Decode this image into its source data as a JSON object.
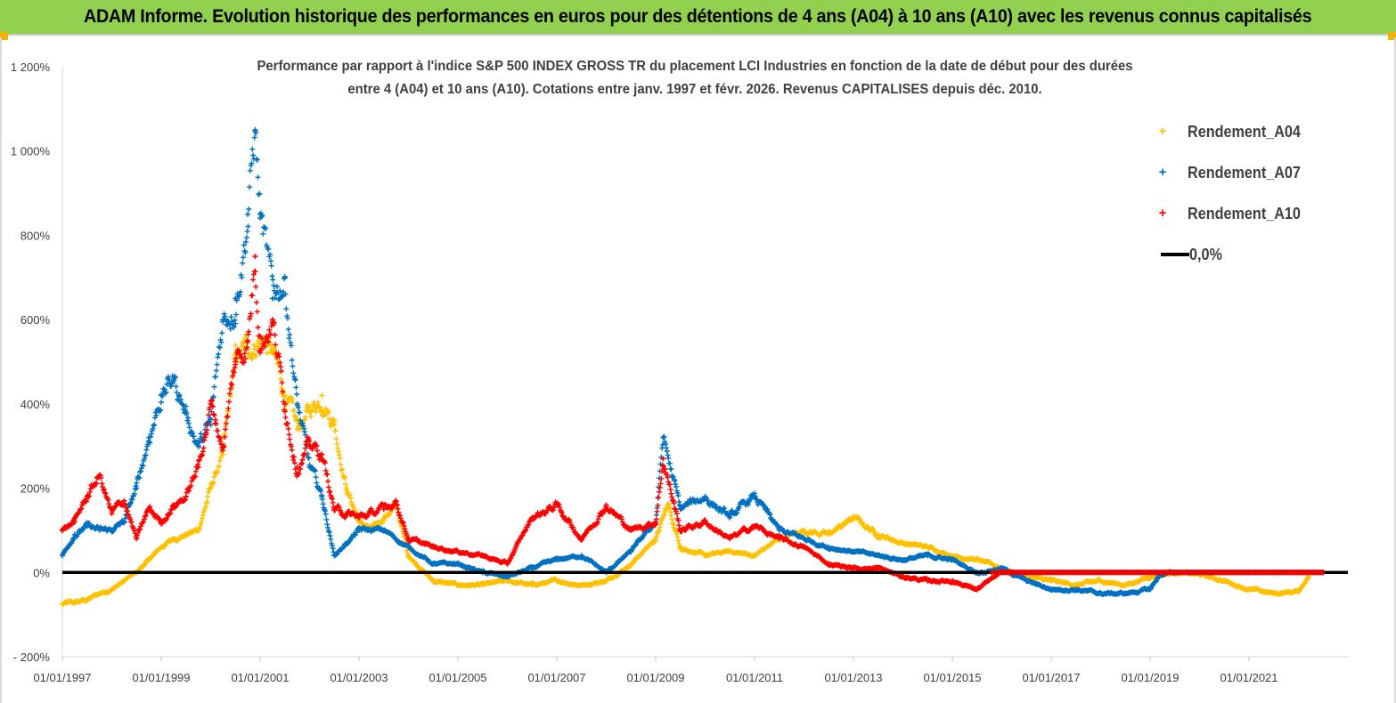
{
  "banner": {
    "title": "ADAM Informe. Evolution historique des performances en euros pour des détentions de 4 ans (A04) à 10 ans (A10) avec les revenus connus capitalisés",
    "color": "#92d050"
  },
  "chart_data": {
    "type": "scatter",
    "title_line1": "Performance par rapport à l'indice S&P 500 INDEX GROSS TR  du placement LCI Industries en fonction de la date de début pour des durées",
    "title_line2": "entre 4 (A04) et 10 ans (A10). Cotations entre janv. 1997 et févr. 2026. Revenus CAPITALISES depuis déc. 2010.",
    "xlabel": "",
    "ylabel": "",
    "ylim": [
      -200,
      1200
    ],
    "xlim": [
      "1997-01-01",
      "2022-12-31"
    ],
    "grid": false,
    "legend_position": "top-right",
    "y_ticks": [
      "- 200%",
      "0%",
      "200%",
      "400%",
      "600%",
      "800%",
      "1 000%",
      "1 200%"
    ],
    "x_ticks": [
      "01/01/1997",
      "01/01/1999",
      "01/01/2001",
      "01/01/2003",
      "01/01/2005",
      "01/01/2007",
      "01/01/2009",
      "01/01/2011",
      "01/01/2013",
      "01/01/2015",
      "01/01/2017",
      "01/01/2019",
      "01/01/2021"
    ],
    "x_tick_years": [
      1997,
      1999,
      2001,
      2003,
      2005,
      2007,
      2009,
      2011,
      2013,
      2015,
      2017,
      2019,
      2021
    ],
    "reference_line": {
      "name": "0,0%",
      "y": 0,
      "color": "#000000"
    },
    "series": [
      {
        "name": "Rendement_A04",
        "color": "#ffc000",
        "marker": "plus",
        "x": [
          1997.0,
          1997.25,
          1997.5,
          1997.75,
          1998.0,
          1998.25,
          1998.5,
          1998.75,
          1999.0,
          1999.25,
          1999.5,
          1999.75,
          2000.0,
          2000.25,
          2000.5,
          2000.75,
          2001.0,
          2001.25,
          2001.5,
          2001.75,
          2002.0,
          2002.25,
          2002.5,
          2002.75,
          2003.0,
          2003.25,
          2003.5,
          2003.75,
          2004.0,
          2004.5,
          2005.0,
          2005.5,
          2006.0,
          2006.5,
          2007.0,
          2007.5,
          2008.0,
          2008.5,
          2009.0,
          2009.25,
          2009.5,
          2010.0,
          2010.5,
          2011.0,
          2011.5,
          2012.0,
          2012.5,
          2013.0,
          2013.5,
          2014.0,
          2014.5,
          2015.0,
          2015.5,
          2016.0,
          2016.5,
          2017.0,
          2017.5,
          2018.0,
          2018.5,
          2019.0,
          2019.5,
          2020.0,
          2020.5,
          2021.0,
          2021.5,
          2022.0,
          2022.2
        ],
        "y": [
          -75,
          -72,
          -65,
          -50,
          -40,
          -20,
          0,
          30,
          60,
          80,
          90,
          100,
          200,
          280,
          500,
          530,
          560,
          520,
          420,
          340,
          380,
          420,
          360,
          200,
          120,
          100,
          130,
          160,
          40,
          -20,
          -30,
          -30,
          -20,
          -30,
          -20,
          -30,
          -20,
          20,
          80,
          160,
          60,
          40,
          50,
          40,
          80,
          100,
          90,
          130,
          90,
          70,
          60,
          40,
          30,
          10,
          -10,
          -20,
          -30,
          -20,
          -30,
          -10,
          0,
          -5,
          -20,
          -40,
          -50,
          -45,
          -10
        ]
      },
      {
        "name": "Rendement_A07",
        "color": "#0070c0",
        "marker": "plus",
        "x": [
          1997.0,
          1997.25,
          1997.5,
          1997.75,
          1998.0,
          1998.25,
          1998.5,
          1998.75,
          1999.0,
          1999.25,
          1999.5,
          1999.75,
          2000.0,
          2000.25,
          2000.5,
          2000.75,
          2000.9,
          2001.0,
          2001.25,
          2001.5,
          2001.75,
          2002.0,
          2002.25,
          2002.5,
          2003.0,
          2003.5,
          2004.0,
          2004.5,
          2005.0,
          2005.5,
          2006.0,
          2006.5,
          2007.0,
          2007.5,
          2008.0,
          2008.5,
          2009.0,
          2009.15,
          2009.5,
          2010.0,
          2010.5,
          2011.0,
          2011.5,
          2012.0,
          2012.5,
          2013.0,
          2013.5,
          2014.0,
          2014.5,
          2015.0,
          2015.5,
          2016.0,
          2016.5,
          2017.0,
          2017.5,
          2018.0,
          2018.5,
          2019.0,
          2019.2,
          2019.5,
          2020.0,
          2020.5,
          2021.0,
          2021.5,
          2022.0,
          2022.5
        ],
        "y": [
          40,
          90,
          110,
          100,
          100,
          120,
          200,
          320,
          420,
          460,
          380,
          300,
          350,
          600,
          650,
          850,
          1050,
          850,
          650,
          700,
          400,
          250,
          180,
          40,
          100,
          100,
          60,
          20,
          20,
          0,
          -10,
          10,
          30,
          40,
          0,
          50,
          120,
          320,
          150,
          180,
          130,
          180,
          100,
          80,
          60,
          50,
          40,
          30,
          40,
          30,
          0,
          10,
          -20,
          -40,
          -40,
          -50,
          -50,
          -40,
          -5,
          0,
          0,
          0,
          0,
          0,
          0,
          0
        ]
      },
      {
        "name": "Rendement_A10",
        "color": "#ff0000",
        "marker": "plus",
        "x": [
          1997.0,
          1997.25,
          1997.5,
          1997.75,
          1998.0,
          1998.25,
          1998.5,
          1998.75,
          1999.0,
          1999.25,
          1999.5,
          1999.75,
          2000.0,
          2000.25,
          2000.5,
          2000.75,
          2000.9,
          2001.0,
          2001.25,
          2001.5,
          2001.75,
          2002.0,
          2002.25,
          2002.5,
          2003.0,
          2003.5,
          2003.75,
          2004.0,
          2004.5,
          2005.0,
          2005.5,
          2006.0,
          2006.5,
          2007.0,
          2007.5,
          2008.0,
          2008.5,
          2009.0,
          2009.15,
          2009.5,
          2010.0,
          2010.5,
          2011.0,
          2011.5,
          2012.0,
          2012.5,
          2013.0,
          2013.5,
          2014.0,
          2014.5,
          2015.0,
          2015.5,
          2016.0,
          2016.5,
          2017.0,
          2017.5,
          2018.0,
          2018.5,
          2019.0,
          2019.5,
          2020.0,
          2020.5,
          2021.0,
          2021.5,
          2022.0,
          2022.5
        ],
        "y": [
          100,
          120,
          180,
          230,
          140,
          170,
          80,
          150,
          120,
          160,
          180,
          250,
          400,
          300,
          500,
          550,
          750,
          560,
          600,
          400,
          250,
          300,
          280,
          150,
          130,
          150,
          170,
          80,
          60,
          50,
          40,
          20,
          130,
          160,
          80,
          160,
          100,
          120,
          270,
          100,
          120,
          80,
          110,
          80,
          60,
          20,
          10,
          10,
          -10,
          -20,
          -20,
          -40,
          0,
          0,
          0,
          0,
          0,
          0,
          0,
          0,
          0,
          0,
          0,
          0,
          0,
          0
        ]
      }
    ]
  }
}
